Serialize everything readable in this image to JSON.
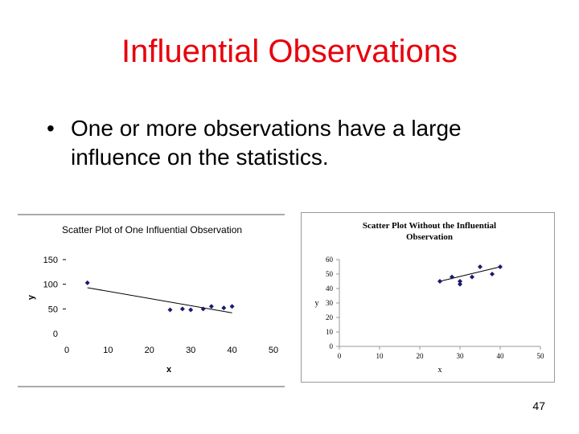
{
  "slide": {
    "title": "Influential Observations",
    "bullet_marker": "•",
    "bullet_text": "One or more observations have a large influence on the statistics.",
    "page_number": "47",
    "title_color": "#e8000b"
  },
  "chart_data": [
    {
      "type": "scatter",
      "title": "Scatter Plot of One Influential Observation",
      "xlabel": "x",
      "ylabel": "y",
      "xlim": [
        0,
        50
      ],
      "ylim": [
        0,
        150
      ],
      "xticks": [
        0,
        10,
        20,
        30,
        40,
        50
      ],
      "yticks": [
        0,
        50,
        100,
        150
      ],
      "points": [
        [
          5,
          103
        ],
        [
          25,
          48
        ],
        [
          28,
          50
        ],
        [
          30,
          48
        ],
        [
          33,
          50
        ],
        [
          35,
          55
        ],
        [
          38,
          52
        ],
        [
          40,
          55
        ]
      ],
      "trendline": [
        [
          5,
          93
        ],
        [
          40,
          42
        ]
      ],
      "marker_color": "#1a1a6e",
      "grid": false
    },
    {
      "type": "scatter",
      "title": "Scatter Plot Without the Influential Observation",
      "xlabel": "x",
      "ylabel": "y",
      "xlim": [
        0,
        50
      ],
      "ylim": [
        0,
        60
      ],
      "xticks": [
        0,
        10,
        20,
        30,
        40,
        50
      ],
      "yticks": [
        0,
        10,
        20,
        30,
        40,
        50,
        60
      ],
      "points": [
        [
          25,
          45
        ],
        [
          28,
          48
        ],
        [
          30,
          43
        ],
        [
          30,
          45
        ],
        [
          33,
          48
        ],
        [
          35,
          55
        ],
        [
          38,
          50
        ],
        [
          40,
          55
        ]
      ],
      "trendline": [
        [
          25,
          45
        ],
        [
          40,
          55
        ]
      ],
      "marker_color": "#1a1a6e",
      "grid": false
    }
  ]
}
